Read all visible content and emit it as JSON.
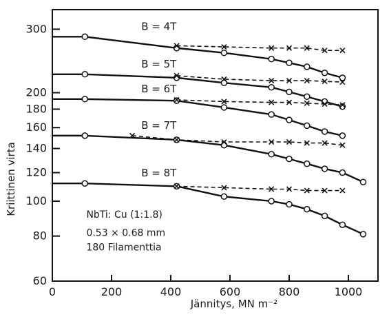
{
  "chart_data": {
    "type": "line",
    "title": "",
    "xlabel": "Jännitys, MN m⁻²",
    "ylabel": "Kriittinen virta",
    "xlim": [
      0,
      1100
    ],
    "ylim": [
      60,
      340
    ],
    "y_scale": "log",
    "grid": false,
    "x_ticks": [
      0,
      200,
      400,
      600,
      800,
      1000
    ],
    "y_ticks": [
      60,
      80,
      100,
      120,
      140,
      160,
      180,
      200,
      300
    ],
    "annotation_lines": [
      "NbTi: Cu (1:1.8)",
      "0.53 × 0.68 mm",
      "180 Filamenttia"
    ],
    "series": [
      {
        "name": "B = 4T",
        "circles": [
          [
            110,
            286
          ],
          [
            420,
            266
          ],
          [
            580,
            258
          ],
          [
            740,
            248
          ],
          [
            800,
            242
          ],
          [
            860,
            236
          ],
          [
            920,
            227
          ],
          [
            980,
            220
          ]
        ],
        "crosses": [
          [
            420,
            270
          ],
          [
            580,
            268
          ],
          [
            740,
            266
          ],
          [
            800,
            266
          ],
          [
            860,
            266
          ],
          [
            920,
            262
          ],
          [
            980,
            262
          ]
        ]
      },
      {
        "name": "B = 5T",
        "circles": [
          [
            110,
            225
          ],
          [
            420,
            220
          ],
          [
            580,
            213
          ],
          [
            740,
            207
          ],
          [
            800,
            201
          ],
          [
            860,
            195
          ],
          [
            920,
            189
          ],
          [
            980,
            183
          ]
        ],
        "crosses": [
          [
            420,
            223
          ],
          [
            580,
            218
          ],
          [
            740,
            216
          ],
          [
            800,
            216
          ],
          [
            860,
            216
          ],
          [
            920,
            215
          ],
          [
            980,
            214
          ]
        ]
      },
      {
        "name": "B = 6T",
        "circles": [
          [
            110,
            192
          ],
          [
            420,
            190
          ],
          [
            580,
            182
          ],
          [
            740,
            174
          ],
          [
            800,
            168
          ],
          [
            860,
            162
          ],
          [
            920,
            156
          ],
          [
            980,
            152
          ]
        ],
        "crosses": [
          [
            420,
            191
          ],
          [
            580,
            189
          ],
          [
            740,
            188
          ],
          [
            800,
            188
          ],
          [
            860,
            187
          ],
          [
            920,
            186
          ],
          [
            980,
            185
          ]
        ]
      },
      {
        "name": "B = 7T",
        "circles": [
          [
            110,
            152
          ],
          [
            420,
            148
          ],
          [
            580,
            143
          ],
          [
            740,
            135
          ],
          [
            800,
            131
          ],
          [
            860,
            127
          ],
          [
            920,
            123
          ],
          [
            980,
            120
          ],
          [
            1050,
            113
          ]
        ],
        "crosses": [
          [
            270,
            152
          ],
          [
            420,
            148
          ],
          [
            580,
            146
          ],
          [
            740,
            146
          ],
          [
            800,
            146
          ],
          [
            860,
            145
          ],
          [
            920,
            145
          ],
          [
            980,
            143
          ]
        ]
      },
      {
        "name": "B = 8T",
        "circles": [
          [
            110,
            112
          ],
          [
            420,
            110
          ],
          [
            580,
            103
          ],
          [
            740,
            100
          ],
          [
            800,
            98
          ],
          [
            860,
            95
          ],
          [
            920,
            91
          ],
          [
            980,
            86
          ],
          [
            1050,
            81
          ]
        ],
        "crosses": [
          [
            420,
            110
          ],
          [
            580,
            109
          ],
          [
            740,
            108
          ],
          [
            800,
            108
          ],
          [
            860,
            107
          ],
          [
            920,
            107
          ],
          [
            980,
            107
          ]
        ]
      }
    ]
  }
}
